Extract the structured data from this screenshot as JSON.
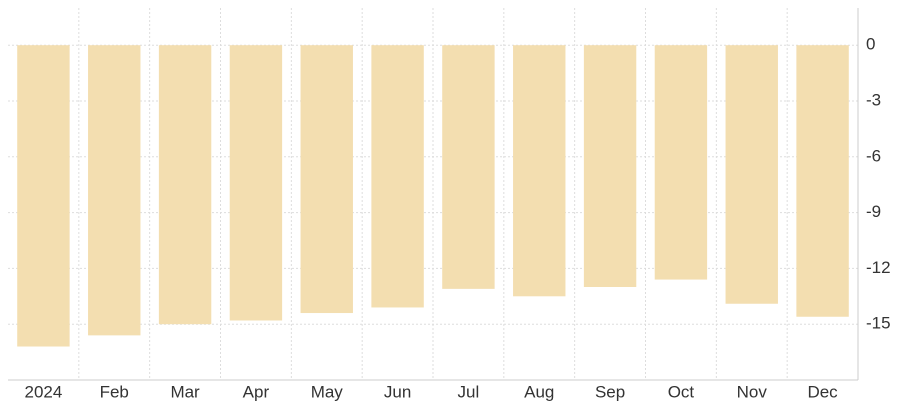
{
  "chart_data": {
    "type": "bar",
    "categories": [
      "2024",
      "Feb",
      "Mar",
      "Apr",
      "May",
      "Jun",
      "Jul",
      "Aug",
      "Sep",
      "Oct",
      "Nov",
      "Dec"
    ],
    "values": [
      -16.2,
      -15.6,
      -15.0,
      -14.8,
      -14.4,
      -14.1,
      -13.1,
      -13.5,
      -13.0,
      -12.6,
      -13.9,
      -14.6
    ],
    "color": "#f3deb0",
    "ylim": [
      -18,
      2
    ],
    "yticks": [
      0,
      -3,
      -6,
      -9,
      -12,
      -15
    ],
    "grid": true
  }
}
